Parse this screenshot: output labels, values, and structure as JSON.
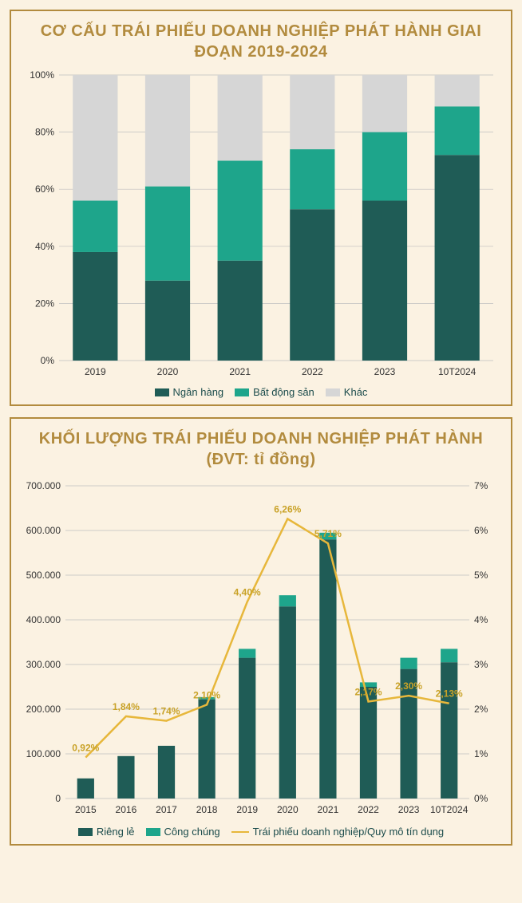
{
  "chart1": {
    "type": "stacked-bar-100",
    "title": "CƠ CẤU TRÁI PHIẾU DOANH NGHIỆP PHÁT HÀNH GIAI ĐOẠN 2019-2024",
    "categories": [
      "2019",
      "2020",
      "2021",
      "2022",
      "2023",
      "10T2024"
    ],
    "series": [
      {
        "name": "Ngân hàng",
        "color": "#1f5c56",
        "values": [
          38,
          28,
          35,
          53,
          56,
          72
        ]
      },
      {
        "name": "Bất động sản",
        "color": "#1ea58b",
        "values": [
          18,
          33,
          35,
          21,
          24,
          17
        ]
      },
      {
        "name": "Khác",
        "color": "#d6d6d6",
        "values": [
          44,
          39,
          30,
          26,
          20,
          11
        ]
      }
    ],
    "ylim": [
      0,
      100
    ],
    "ytick_step": 20,
    "y_suffix": "%",
    "background": "#fbf2e2",
    "grid_color": "#bfbfbf",
    "bar_width": 0.62,
    "title_color": "#b28b3e",
    "title_fontsize": 20
  },
  "chart2": {
    "type": "bar-line-dual-axis",
    "title": "KHỐI LƯỢNG TRÁI PHIẾU DOANH NGHIỆP PHÁT HÀNH (ĐVT: tỉ đồng)",
    "categories": [
      "2015",
      "2016",
      "2017",
      "2018",
      "2019",
      "2020",
      "2021",
      "2022",
      "2023",
      "10T2024"
    ],
    "bars": [
      {
        "name": "Riêng lẻ",
        "color": "#1f5c56",
        "values": [
          45000,
          95000,
          118000,
          222000,
          315000,
          430000,
          580000,
          250000,
          290000,
          305000
        ]
      },
      {
        "name": "Công chúng",
        "color": "#1ea58b",
        "values": [
          0,
          0,
          0,
          5000,
          20000,
          25000,
          15000,
          10000,
          25000,
          30000
        ]
      }
    ],
    "line": {
      "name": "Trái phiếu doanh nghiệp/Quy mô tín dụng",
      "color": "#e7b73b",
      "values": [
        0.92,
        1.84,
        1.74,
        2.1,
        4.4,
        6.26,
        5.71,
        2.17,
        2.3,
        2.13
      ],
      "labels": [
        "0,92%",
        "1,84%",
        "1,74%",
        "2,10%",
        "4,40%",
        "6,26%",
        "5,71%",
        "2,17%",
        "2,30%",
        "2,13%"
      ]
    },
    "y1": {
      "lim": [
        0,
        700000
      ],
      "step": 100000,
      "format": "thousand-dot"
    },
    "y2": {
      "lim": [
        0,
        7
      ],
      "step": 1,
      "suffix": "%"
    },
    "background": "#fbf2e2",
    "grid_color": "#bfbfbf",
    "bar_width": 0.42,
    "title_color": "#b28b3e",
    "title_fontsize": 20,
    "line_label_color": "#c9a227",
    "line_label_fontsize": 12
  }
}
